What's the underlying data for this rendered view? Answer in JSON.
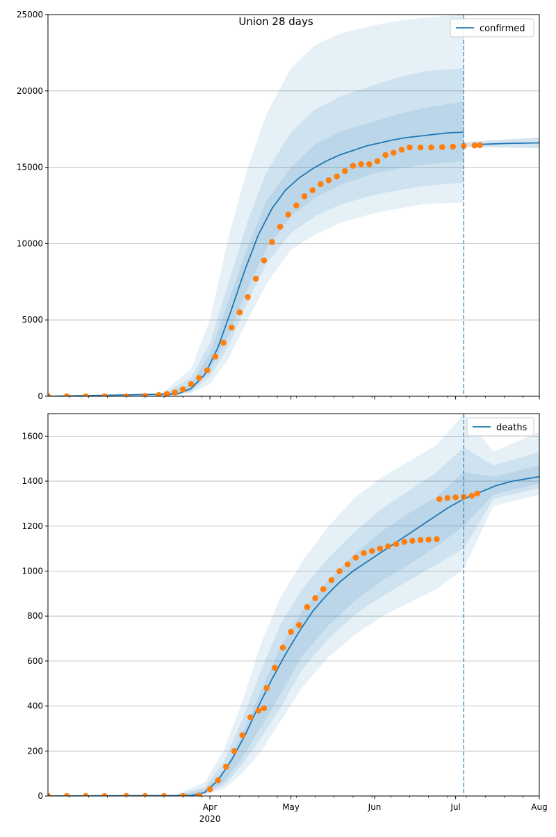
{
  "figure": {
    "title": "Union 28 days"
  },
  "chart_data": [
    {
      "type": "line",
      "title": "Union 28 days",
      "xaxis": {
        "type": "date",
        "range": [
          "2020-02-01",
          "2020-08-01"
        ],
        "major_ticks": [
          {
            "date": "2020-04-01",
            "label": "Apr",
            "sublabel": "2020"
          },
          {
            "date": "2020-05-01",
            "label": "May",
            "sublabel": ""
          },
          {
            "date": "2020-06-01",
            "label": "Jun",
            "sublabel": ""
          },
          {
            "date": "2020-07-01",
            "label": "Jul",
            "sublabel": ""
          },
          {
            "date": "2020-08-01",
            "label": "Aug",
            "sublabel": ""
          }
        ],
        "minor_ticks": [
          "2020-02-09",
          "2020-02-16",
          "2020-02-23",
          "2020-03-01",
          "2020-03-08",
          "2020-03-15",
          "2020-03-22",
          "2020-03-29",
          "2020-04-05",
          "2020-04-12",
          "2020-04-19",
          "2020-04-26",
          "2020-05-03",
          "2020-05-10",
          "2020-05-17",
          "2020-05-24",
          "2020-05-31",
          "2020-06-07",
          "2020-06-14",
          "2020-06-21",
          "2020-06-28",
          "2020-07-05",
          "2020-07-12",
          "2020-07-19",
          "2020-07-26"
        ],
        "show_labels": false
      },
      "yaxis": {
        "range": [
          0,
          25000
        ],
        "ticks": [
          0,
          5000,
          10000,
          15000,
          20000,
          25000
        ],
        "tick_labels": [
          "0",
          "5000",
          "10000",
          "15000",
          "20000",
          "25000"
        ]
      },
      "grid": "horizontal",
      "legend": {
        "placement": "top-right",
        "entries": [
          "confirmed"
        ]
      },
      "forecast_start": "2020-07-04",
      "colors": {
        "line": "#1f77b4",
        "band": "#1f77b4",
        "observed": "#ff7f0e",
        "vline": "#1f77b4"
      },
      "model_median": {
        "x": [
          "2020-02-01",
          "2020-03-20",
          "2020-03-25",
          "2020-03-30",
          "2020-04-04",
          "2020-04-09",
          "2020-04-14",
          "2020-04-19",
          "2020-04-24",
          "2020-04-29",
          "2020-05-04",
          "2020-05-09",
          "2020-05-14",
          "2020-05-19",
          "2020-05-24",
          "2020-05-29",
          "2020-06-03",
          "2020-06-08",
          "2020-06-13",
          "2020-06-18",
          "2020-06-23",
          "2020-06-28",
          "2020-07-04",
          "2020-07-10",
          "2020-07-20",
          "2020-08-01"
        ],
        "y": [
          0,
          150,
          500,
          1400,
          3200,
          5700,
          8300,
          10600,
          12300,
          13500,
          14300,
          14900,
          15400,
          15800,
          16100,
          16400,
          16600,
          16800,
          16950,
          17050,
          17150,
          17250,
          17300,
          16500,
          16560,
          16600
        ]
      },
      "bands": [
        {
          "x": [
            "2020-03-15",
            "2020-03-25",
            "2020-04-01",
            "2020-04-08",
            "2020-04-15",
            "2020-04-22",
            "2020-05-01",
            "2020-05-10",
            "2020-05-20",
            "2020-06-01",
            "2020-06-10",
            "2020-06-20",
            "2020-07-04"
          ],
          "lower": [
            0,
            200,
            800,
            2500,
            5000,
            7400,
            9600,
            10600,
            11400,
            12000,
            12300,
            12600,
            12700
          ],
          "upper": [
            300,
            1800,
            5000,
            10500,
            15000,
            18500,
            21500,
            23000,
            23800,
            24300,
            24600,
            24800,
            25000
          ]
        },
        {
          "x": [
            "2020-03-15",
            "2020-03-25",
            "2020-04-01",
            "2020-04-08",
            "2020-04-15",
            "2020-04-22",
            "2020-05-01",
            "2020-05-10",
            "2020-05-20",
            "2020-06-01",
            "2020-06-10",
            "2020-06-20",
            "2020-07-04"
          ],
          "lower": [
            0,
            300,
            1300,
            3300,
            6200,
            8700,
            10700,
            11800,
            12600,
            13200,
            13500,
            13800,
            14000
          ],
          "upper": [
            200,
            1200,
            3500,
            7500,
            11500,
            14700,
            17300,
            18800,
            19700,
            20400,
            20900,
            21300,
            21500
          ]
        },
        {
          "x": [
            "2020-03-15",
            "2020-03-25",
            "2020-04-01",
            "2020-04-08",
            "2020-04-15",
            "2020-04-22",
            "2020-05-01",
            "2020-05-10",
            "2020-05-20",
            "2020-06-01",
            "2020-06-10",
            "2020-06-20",
            "2020-07-04"
          ],
          "lower": [
            0,
            350,
            1700,
            4000,
            7100,
            9700,
            11800,
            13000,
            13900,
            14600,
            14900,
            15200,
            15400
          ],
          "upper": [
            150,
            800,
            2800,
            6300,
            9800,
            12800,
            15000,
            16500,
            17400,
            18000,
            18500,
            18900,
            19300
          ]
        }
      ],
      "post_bands": [
        {
          "x": [
            "2020-07-04",
            "2020-08-01"
          ],
          "lower": [
            16350,
            16250
          ],
          "upper": [
            16650,
            16950
          ]
        }
      ],
      "observed": {
        "x": [
          "2020-02-01",
          "2020-02-08",
          "2020-02-15",
          "2020-02-22",
          "2020-03-01",
          "2020-03-08",
          "2020-03-13",
          "2020-03-16",
          "2020-03-19",
          "2020-03-22",
          "2020-03-25",
          "2020-03-28",
          "2020-03-31",
          "2020-04-03",
          "2020-04-06",
          "2020-04-09",
          "2020-04-12",
          "2020-04-15",
          "2020-04-18",
          "2020-04-21",
          "2020-04-24",
          "2020-04-27",
          "2020-04-30",
          "2020-05-03",
          "2020-05-06",
          "2020-05-09",
          "2020-05-12",
          "2020-05-15",
          "2020-05-18",
          "2020-05-21",
          "2020-05-24",
          "2020-05-27",
          "2020-05-30",
          "2020-06-02",
          "2020-06-05",
          "2020-06-08",
          "2020-06-11",
          "2020-06-14",
          "2020-06-18",
          "2020-06-22",
          "2020-06-26",
          "2020-06-30",
          "2020-07-04",
          "2020-07-08",
          "2020-07-10"
        ],
        "y": [
          0,
          0,
          0,
          0,
          0,
          30,
          80,
          150,
          250,
          450,
          800,
          1200,
          1700,
          2600,
          3500,
          4500,
          5500,
          6500,
          7700,
          8900,
          10100,
          11100,
          11900,
          12500,
          13100,
          13500,
          13900,
          14150,
          14400,
          14750,
          15100,
          15200,
          15200,
          15400,
          15800,
          15950,
          16150,
          16300,
          16300,
          16300,
          16320,
          16350,
          16400,
          16430,
          16450
        ]
      }
    },
    {
      "type": "line",
      "xaxis": {
        "type": "date",
        "range": [
          "2020-02-01",
          "2020-08-01"
        ],
        "major_ticks": [
          {
            "date": "2020-04-01",
            "label": "Apr",
            "sublabel": "2020"
          },
          {
            "date": "2020-05-01",
            "label": "May",
            "sublabel": ""
          },
          {
            "date": "2020-06-01",
            "label": "Jun",
            "sublabel": ""
          },
          {
            "date": "2020-07-01",
            "label": "Jul",
            "sublabel": ""
          },
          {
            "date": "2020-08-01",
            "label": "Aug",
            "sublabel": ""
          }
        ],
        "minor_ticks": [
          "2020-02-09",
          "2020-02-16",
          "2020-02-23",
          "2020-03-01",
          "2020-03-08",
          "2020-03-15",
          "2020-03-22",
          "2020-03-29",
          "2020-04-05",
          "2020-04-12",
          "2020-04-19",
          "2020-04-26",
          "2020-05-03",
          "2020-05-10",
          "2020-05-17",
          "2020-05-24",
          "2020-05-31",
          "2020-06-07",
          "2020-06-14",
          "2020-06-21",
          "2020-06-28",
          "2020-07-05",
          "2020-07-12",
          "2020-07-19",
          "2020-07-26"
        ],
        "show_labels": true
      },
      "yaxis": {
        "range": [
          0,
          1700
        ],
        "ticks": [
          0,
          200,
          400,
          600,
          800,
          1000,
          1200,
          1400,
          1600
        ],
        "tick_labels": [
          "0",
          "200",
          "400",
          "600",
          "800",
          "1000",
          "1200",
          "1400",
          "1600"
        ]
      },
      "grid": "horizontal",
      "legend": {
        "placement": "top-right",
        "entries": [
          "deaths"
        ]
      },
      "forecast_start": "2020-07-04",
      "colors": {
        "line": "#1f77b4",
        "band": "#1f77b4",
        "observed": "#ff7f0e",
        "vline": "#1f77b4"
      },
      "model_median": {
        "x": [
          "2020-02-01",
          "2020-03-25",
          "2020-03-30",
          "2020-04-04",
          "2020-04-09",
          "2020-04-14",
          "2020-04-19",
          "2020-04-24",
          "2020-04-29",
          "2020-05-04",
          "2020-05-09",
          "2020-05-14",
          "2020-05-19",
          "2020-05-24",
          "2020-05-29",
          "2020-06-03",
          "2020-06-08",
          "2020-06-13",
          "2020-06-18",
          "2020-06-23",
          "2020-06-28",
          "2020-07-04",
          "2020-07-10",
          "2020-07-16",
          "2020-07-22",
          "2020-08-01"
        ],
        "y": [
          0,
          2,
          15,
          70,
          160,
          270,
          400,
          520,
          630,
          730,
          820,
          890,
          950,
          1000,
          1040,
          1080,
          1120,
          1160,
          1200,
          1240,
          1280,
          1320,
          1350,
          1380,
          1400,
          1420
        ]
      },
      "bands": [
        {
          "x": [
            "2020-03-20",
            "2020-03-30",
            "2020-04-06",
            "2020-04-13",
            "2020-04-20",
            "2020-04-27",
            "2020-05-05",
            "2020-05-15",
            "2020-05-25",
            "2020-06-04",
            "2020-06-14",
            "2020-06-24",
            "2020-07-04",
            "2020-07-15",
            "2020-08-01"
          ],
          "lower": [
            0,
            5,
            30,
            100,
            200,
            330,
            480,
            620,
            720,
            800,
            860,
            920,
            1010,
            1290,
            1340
          ],
          "upper": [
            10,
            60,
            200,
            420,
            680,
            880,
            1040,
            1200,
            1330,
            1420,
            1490,
            1560,
            1700,
            1530,
            1620
          ]
        },
        {
          "x": [
            "2020-03-20",
            "2020-03-30",
            "2020-04-06",
            "2020-04-13",
            "2020-04-20",
            "2020-04-27",
            "2020-05-05",
            "2020-05-15",
            "2020-05-25",
            "2020-06-04",
            "2020-06-14",
            "2020-06-24",
            "2020-07-04",
            "2020-07-15",
            "2020-08-01"
          ],
          "lower": [
            0,
            8,
            45,
            140,
            260,
            390,
            560,
            700,
            810,
            890,
            960,
            1030,
            1100,
            1320,
            1370
          ],
          "upper": [
            6,
            40,
            150,
            340,
            560,
            760,
            920,
            1060,
            1180,
            1280,
            1360,
            1440,
            1550,
            1470,
            1530
          ]
        },
        {
          "x": [
            "2020-03-20",
            "2020-03-30",
            "2020-04-06",
            "2020-04-13",
            "2020-04-20",
            "2020-04-27",
            "2020-05-05",
            "2020-05-15",
            "2020-05-25",
            "2020-06-04",
            "2020-06-14",
            "2020-06-24",
            "2020-07-04",
            "2020-07-15",
            "2020-08-01"
          ],
          "lower": [
            0,
            10,
            60,
            170,
            310,
            450,
            620,
            760,
            870,
            960,
            1030,
            1110,
            1200,
            1340,
            1390
          ],
          "upper": [
            4,
            28,
            110,
            280,
            470,
            660,
            820,
            960,
            1080,
            1180,
            1260,
            1330,
            1440,
            1420,
            1470
          ]
        }
      ],
      "post_bands": [],
      "observed": {
        "x": [
          "2020-02-01",
          "2020-02-08",
          "2020-02-15",
          "2020-02-22",
          "2020-03-01",
          "2020-03-08",
          "2020-03-15",
          "2020-03-22",
          "2020-03-28",
          "2020-04-01",
          "2020-04-04",
          "2020-04-07",
          "2020-04-10",
          "2020-04-13",
          "2020-04-16",
          "2020-04-19",
          "2020-04-21",
          "2020-04-22",
          "2020-04-25",
          "2020-04-28",
          "2020-05-01",
          "2020-05-04",
          "2020-05-07",
          "2020-05-10",
          "2020-05-13",
          "2020-05-16",
          "2020-05-19",
          "2020-05-22",
          "2020-05-25",
          "2020-05-28",
          "2020-05-31",
          "2020-06-03",
          "2020-06-06",
          "2020-06-09",
          "2020-06-12",
          "2020-06-15",
          "2020-06-18",
          "2020-06-21",
          "2020-06-24",
          "2020-06-25",
          "2020-06-28",
          "2020-07-01",
          "2020-07-04",
          "2020-07-07",
          "2020-07-09"
        ],
        "y": [
          0,
          0,
          0,
          0,
          0,
          0,
          0,
          0,
          2,
          30,
          70,
          130,
          200,
          270,
          350,
          380,
          390,
          480,
          570,
          660,
          730,
          760,
          840,
          880,
          920,
          960,
          1000,
          1030,
          1060,
          1080,
          1090,
          1100,
          1110,
          1120,
          1130,
          1135,
          1138,
          1140,
          1142,
          1320,
          1325,
          1328,
          1330,
          1335,
          1345
        ]
      }
    }
  ]
}
